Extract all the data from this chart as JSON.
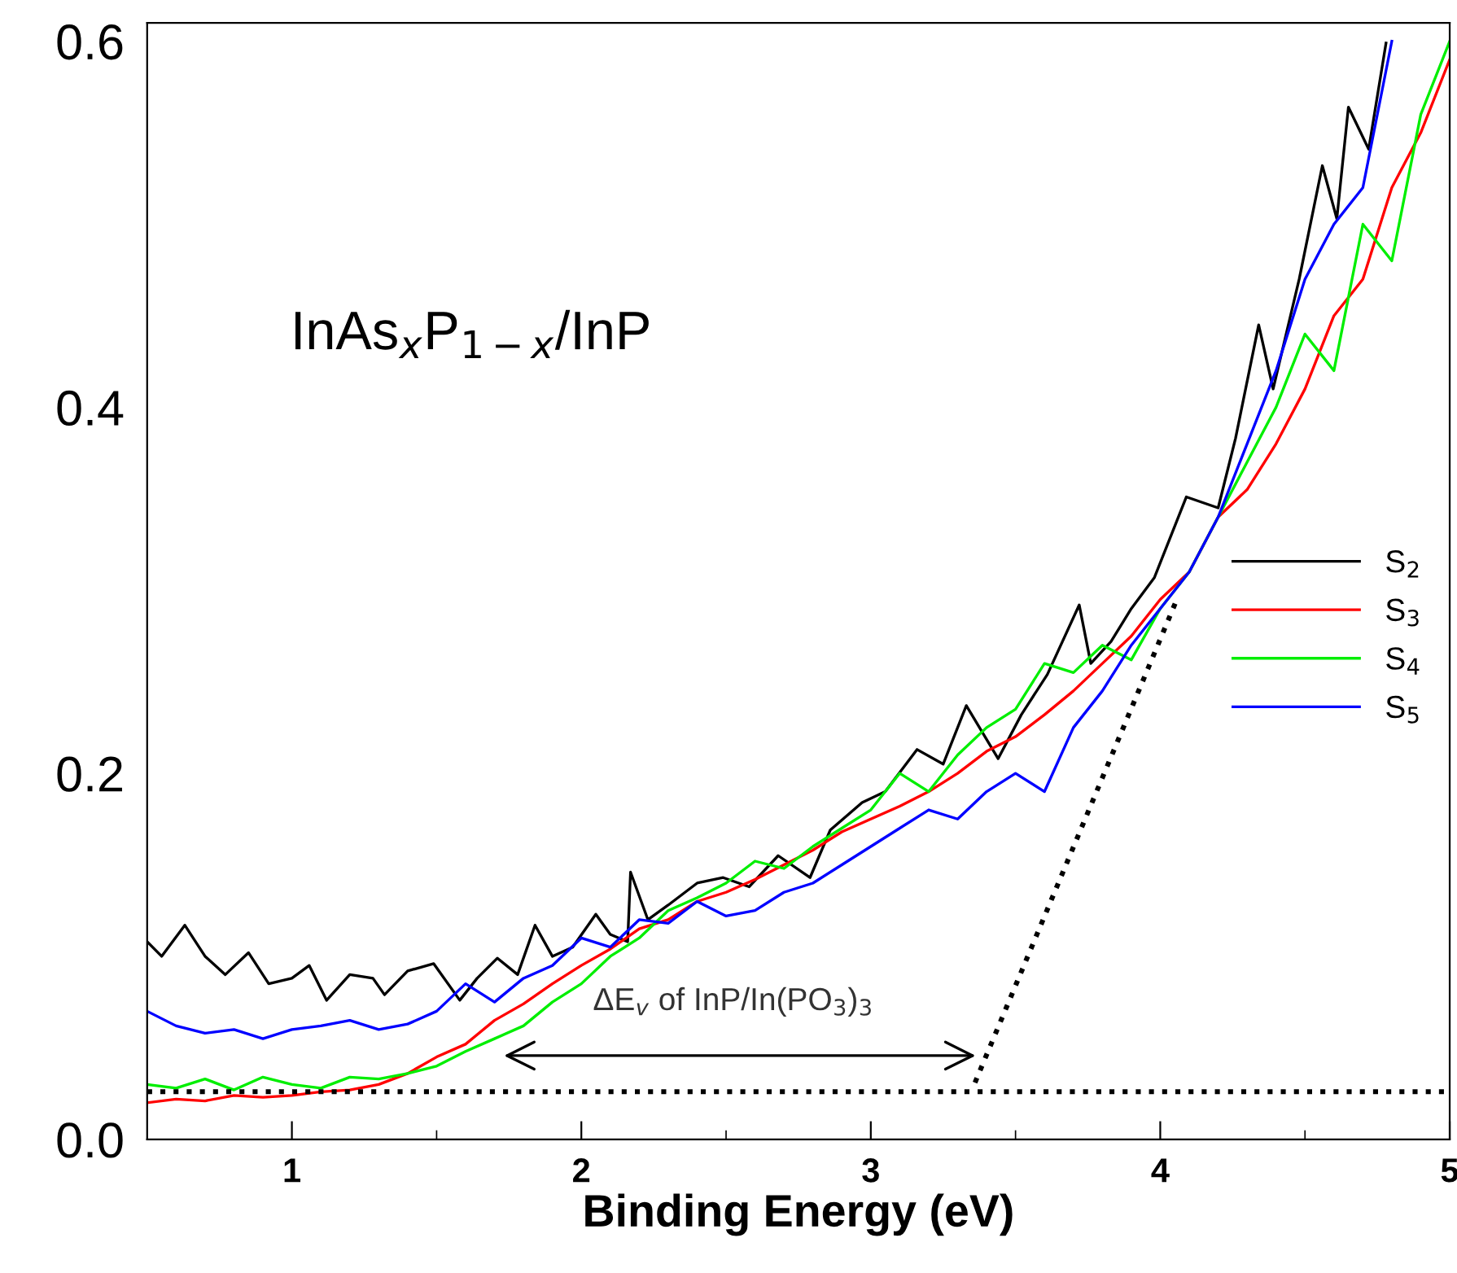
{
  "chart_data": {
    "type": "line",
    "xlabel": "Binding Energy (eV)",
    "xlim": [
      0.5,
      5.0
    ],
    "ylim": [
      0.0,
      0.61
    ],
    "xticks": [
      1,
      {
        "value": 1.5,
        "label": null
      },
      2,
      {
        "value": 2.5,
        "label": null
      },
      3,
      {
        "value": 3.5,
        "label": null
      },
      4,
      {
        "value": 4.5,
        "label": null
      },
      5
    ],
    "yticks": [
      {
        "value": 0.0,
        "label": "0.0"
      },
      0.2,
      0.4,
      0.6
    ],
    "grid": false,
    "legend": "right",
    "line_style": "solid",
    "marker": "none",
    "annotations": [
      "InAs$_{x}$P$_{1−x}$/InP",
      "ΔE$_{v}$ of InP/In(PO$_{3}$)$_{3}$"
    ],
    "series": [
      {
        "name": "S$_{2}$",
        "color": "#000000",
        "x": [
          0.5,
          0.55,
          0.63,
          0.7,
          0.77,
          0.85,
          0.92,
          1.0,
          1.06,
          1.12,
          1.2,
          1.28,
          1.32,
          1.4,
          1.49,
          1.58,
          1.64,
          1.71,
          1.78,
          1.84,
          1.9,
          1.97,
          2.05,
          2.1,
          2.16,
          2.17,
          2.23,
          2.3,
          2.4,
          2.49,
          2.58,
          2.68,
          2.79,
          2.86,
          2.97,
          3.05,
          3.16,
          3.25,
          3.33,
          3.44,
          3.52,
          3.61,
          3.72,
          3.76,
          3.83,
          3.9,
          3.98,
          4.09,
          4.2,
          4.26,
          4.34,
          4.39,
          4.48,
          4.56,
          4.61,
          4.65,
          4.72,
          4.78
        ],
        "values": [
          0.108,
          0.1,
          0.117,
          0.1,
          0.09,
          0.102,
          0.085,
          0.088,
          0.095,
          0.076,
          0.09,
          0.088,
          0.079,
          0.092,
          0.096,
          0.076,
          0.088,
          0.099,
          0.09,
          0.117,
          0.1,
          0.105,
          0.123,
          0.112,
          0.108,
          0.146,
          0.12,
          0.128,
          0.14,
          0.143,
          0.138,
          0.155,
          0.143,
          0.169,
          0.184,
          0.19,
          0.213,
          0.205,
          0.237,
          0.208,
          0.232,
          0.254,
          0.292,
          0.26,
          0.272,
          0.29,
          0.307,
          0.351,
          0.345,
          0.383,
          0.445,
          0.41,
          0.47,
          0.532,
          0.503,
          0.564,
          0.541,
          0.599
        ]
      },
      {
        "name": "S$_{3}$",
        "color": "#ff0000",
        "x": [
          0.5,
          0.6,
          0.7,
          0.8,
          0.9,
          1.0,
          1.1,
          1.2,
          1.3,
          1.4,
          1.5,
          1.6,
          1.7,
          1.8,
          1.9,
          2.0,
          2.1,
          2.2,
          2.3,
          2.4,
          2.5,
          2.6,
          2.7,
          2.8,
          2.9,
          3.0,
          3.1,
          3.2,
          3.3,
          3.4,
          3.5,
          3.6,
          3.7,
          3.8,
          3.9,
          4.0,
          4.1,
          4.2,
          4.3,
          4.4,
          4.5,
          4.6,
          4.7,
          4.8,
          4.9,
          5.0
        ],
        "values": [
          0.02,
          0.022,
          0.021,
          0.024,
          0.023,
          0.024,
          0.026,
          0.027,
          0.03,
          0.036,
          0.045,
          0.052,
          0.065,
          0.074,
          0.085,
          0.095,
          0.104,
          0.115,
          0.12,
          0.13,
          0.135,
          0.142,
          0.15,
          0.158,
          0.168,
          0.175,
          0.182,
          0.19,
          0.2,
          0.212,
          0.22,
          0.232,
          0.245,
          0.26,
          0.275,
          0.295,
          0.31,
          0.34,
          0.355,
          0.38,
          0.41,
          0.45,
          0.47,
          0.52,
          0.55,
          0.59
        ]
      },
      {
        "name": "S$_{4}$",
        "color": "#00ee00",
        "x": [
          0.5,
          0.6,
          0.7,
          0.8,
          0.9,
          1.0,
          1.1,
          1.2,
          1.3,
          1.4,
          1.5,
          1.6,
          1.7,
          1.8,
          1.9,
          2.0,
          2.1,
          2.2,
          2.3,
          2.4,
          2.5,
          2.6,
          2.7,
          2.8,
          2.9,
          3.0,
          3.1,
          3.2,
          3.3,
          3.4,
          3.5,
          3.6,
          3.7,
          3.8,
          3.9,
          4.0,
          4.1,
          4.2,
          4.3,
          4.4,
          4.5,
          4.6,
          4.7,
          4.8,
          4.9,
          5.0
        ],
        "values": [
          0.03,
          0.028,
          0.033,
          0.027,
          0.034,
          0.03,
          0.028,
          0.034,
          0.033,
          0.036,
          0.04,
          0.048,
          0.055,
          0.062,
          0.075,
          0.085,
          0.1,
          0.11,
          0.125,
          0.132,
          0.14,
          0.152,
          0.148,
          0.16,
          0.17,
          0.18,
          0.2,
          0.19,
          0.21,
          0.225,
          0.235,
          0.26,
          0.255,
          0.27,
          0.262,
          0.29,
          0.31,
          0.34,
          0.37,
          0.4,
          0.44,
          0.42,
          0.5,
          0.48,
          0.56,
          0.6
        ]
      },
      {
        "name": "S$_{5}$",
        "color": "#0000ff",
        "x": [
          0.5,
          0.6,
          0.7,
          0.8,
          0.9,
          1.0,
          1.1,
          1.2,
          1.3,
          1.4,
          1.5,
          1.6,
          1.7,
          1.8,
          1.9,
          2.0,
          2.1,
          2.2,
          2.3,
          2.4,
          2.5,
          2.6,
          2.7,
          2.8,
          2.9,
          3.0,
          3.1,
          3.2,
          3.3,
          3.4,
          3.5,
          3.6,
          3.7,
          3.8,
          3.9,
          4.0,
          4.1,
          4.2,
          4.3,
          4.4,
          4.5,
          4.6,
          4.7,
          4.8
        ],
        "values": [
          0.07,
          0.062,
          0.058,
          0.06,
          0.055,
          0.06,
          0.062,
          0.065,
          0.06,
          0.063,
          0.07,
          0.085,
          0.075,
          0.088,
          0.095,
          0.11,
          0.105,
          0.12,
          0.118,
          0.13,
          0.122,
          0.125,
          0.135,
          0.14,
          0.15,
          0.16,
          0.17,
          0.18,
          0.175,
          0.19,
          0.2,
          0.19,
          0.225,
          0.245,
          0.27,
          0.29,
          0.31,
          0.34,
          0.38,
          0.42,
          0.47,
          0.5,
          0.52,
          0.6
        ]
      },
      {
        "type": "line",
        "color": "#000000",
        "line_style": "dotted",
        "x": [
          0.5,
          5.0
        ],
        "values": [
          0.026,
          0.026
        ]
      },
      {
        "type": "line",
        "color": "#000000",
        "line_style": "dotted",
        "x": [
          3.36,
          4.06
        ],
        "values": [
          0.031,
          0.296
        ]
      }
    ]
  }
}
